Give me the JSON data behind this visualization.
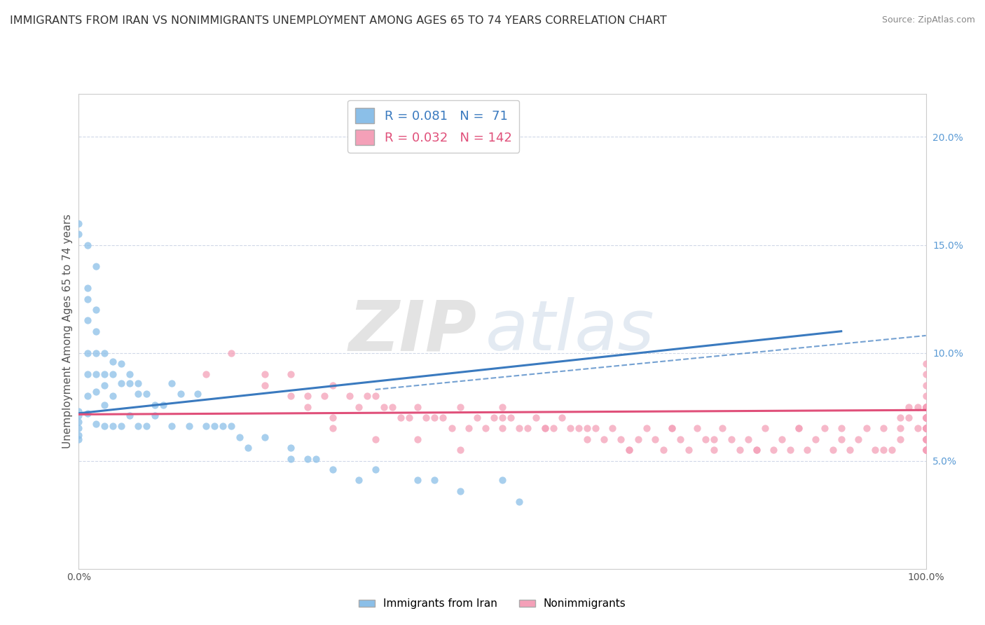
{
  "title": "IMMIGRANTS FROM IRAN VS NONIMMIGRANTS UNEMPLOYMENT AMONG AGES 65 TO 74 YEARS CORRELATION CHART",
  "source": "Source: ZipAtlas.com",
  "ylabel": "Unemployment Among Ages 65 to 74 years",
  "y_ticks": [
    0.05,
    0.1,
    0.15,
    0.2
  ],
  "y_tick_labels": [
    "5.0%",
    "10.0%",
    "15.0%",
    "20.0%"
  ],
  "x_range": [
    0.0,
    1.0
  ],
  "y_range": [
    0.0,
    0.22
  ],
  "series1": {
    "label": "Immigrants from Iran",
    "color": "#8bbfe8",
    "trend_color": "#3a7abf",
    "R": 0.081,
    "N": 71,
    "scatter_x": [
      0.0,
      0.0,
      0.0,
      0.0,
      0.0,
      0.0,
      0.01,
      0.01,
      0.01,
      0.01,
      0.01,
      0.01,
      0.01,
      0.02,
      0.02,
      0.02,
      0.02,
      0.02,
      0.02,
      0.03,
      0.03,
      0.03,
      0.03,
      0.03,
      0.04,
      0.04,
      0.04,
      0.04,
      0.05,
      0.05,
      0.05,
      0.06,
      0.06,
      0.06,
      0.07,
      0.07,
      0.07,
      0.08,
      0.08,
      0.09,
      0.09,
      0.1,
      0.11,
      0.11,
      0.12,
      0.13,
      0.14,
      0.15,
      0.16,
      0.17,
      0.18,
      0.19,
      0.2,
      0.22,
      0.25,
      0.25,
      0.27,
      0.28,
      0.3,
      0.33,
      0.35,
      0.4,
      0.42,
      0.45,
      0.5,
      0.52,
      0.0,
      0.0,
      0.01,
      0.02
    ],
    "scatter_y": [
      0.073,
      0.065,
      0.062,
      0.068,
      0.071,
      0.06,
      0.13,
      0.125,
      0.115,
      0.1,
      0.09,
      0.08,
      0.072,
      0.12,
      0.11,
      0.1,
      0.09,
      0.082,
      0.067,
      0.1,
      0.09,
      0.085,
      0.076,
      0.066,
      0.096,
      0.09,
      0.08,
      0.066,
      0.095,
      0.086,
      0.066,
      0.09,
      0.086,
      0.071,
      0.086,
      0.081,
      0.066,
      0.081,
      0.066,
      0.076,
      0.071,
      0.076,
      0.086,
      0.066,
      0.081,
      0.066,
      0.081,
      0.066,
      0.066,
      0.066,
      0.066,
      0.061,
      0.056,
      0.061,
      0.056,
      0.051,
      0.051,
      0.051,
      0.046,
      0.041,
      0.046,
      0.041,
      0.041,
      0.036,
      0.041,
      0.031,
      0.16,
      0.155,
      0.15,
      0.14
    ],
    "trend_x": [
      0.0,
      0.9
    ],
    "trend_y": [
      0.072,
      0.11
    ]
  },
  "series2": {
    "label": "Nonimmigrants",
    "color": "#f4a0b8",
    "trend_color": "#e0507a",
    "R": 0.032,
    "N": 142,
    "scatter_x": [
      0.15,
      0.18,
      0.22,
      0.22,
      0.25,
      0.25,
      0.27,
      0.27,
      0.29,
      0.3,
      0.3,
      0.32,
      0.33,
      0.34,
      0.35,
      0.36,
      0.37,
      0.38,
      0.39,
      0.4,
      0.41,
      0.42,
      0.43,
      0.44,
      0.45,
      0.46,
      0.47,
      0.48,
      0.49,
      0.5,
      0.5,
      0.51,
      0.52,
      0.53,
      0.54,
      0.55,
      0.56,
      0.57,
      0.58,
      0.59,
      0.6,
      0.61,
      0.62,
      0.63,
      0.64,
      0.65,
      0.66,
      0.67,
      0.68,
      0.69,
      0.7,
      0.71,
      0.72,
      0.73,
      0.74,
      0.75,
      0.76,
      0.77,
      0.78,
      0.79,
      0.8,
      0.81,
      0.82,
      0.83,
      0.84,
      0.85,
      0.86,
      0.87,
      0.88,
      0.89,
      0.9,
      0.91,
      0.92,
      0.93,
      0.94,
      0.95,
      0.96,
      0.97,
      0.97,
      0.98,
      0.98,
      0.99,
      0.99,
      1.0,
      1.0,
      1.0,
      1.0,
      1.0,
      1.0,
      1.0,
      1.0,
      1.0,
      1.0,
      1.0,
      1.0,
      1.0,
      1.0,
      1.0,
      1.0,
      1.0,
      1.0,
      0.3,
      0.35,
      0.4,
      0.45,
      0.5,
      0.55,
      0.6,
      0.65,
      0.7,
      0.75,
      0.8,
      0.85,
      0.9,
      0.95,
      1.0,
      1.0,
      1.0,
      1.0,
      1.0,
      1.0,
      1.0,
      1.0,
      1.0,
      1.0,
      1.0,
      1.0,
      1.0,
      1.0,
      1.0,
      1.0,
      1.0,
      1.0,
      1.0,
      1.0,
      1.0,
      1.0,
      1.0,
      1.0,
      1.0,
      1.0,
      1.0,
      0.97
    ],
    "scatter_y": [
      0.09,
      0.1,
      0.085,
      0.09,
      0.09,
      0.08,
      0.08,
      0.075,
      0.08,
      0.085,
      0.07,
      0.08,
      0.075,
      0.08,
      0.08,
      0.075,
      0.075,
      0.07,
      0.07,
      0.075,
      0.07,
      0.07,
      0.07,
      0.065,
      0.075,
      0.065,
      0.07,
      0.065,
      0.07,
      0.075,
      0.065,
      0.07,
      0.065,
      0.065,
      0.07,
      0.065,
      0.065,
      0.07,
      0.065,
      0.065,
      0.065,
      0.065,
      0.06,
      0.065,
      0.06,
      0.055,
      0.06,
      0.065,
      0.06,
      0.055,
      0.065,
      0.06,
      0.055,
      0.065,
      0.06,
      0.055,
      0.065,
      0.06,
      0.055,
      0.06,
      0.055,
      0.065,
      0.055,
      0.06,
      0.055,
      0.065,
      0.055,
      0.06,
      0.065,
      0.055,
      0.065,
      0.055,
      0.06,
      0.065,
      0.055,
      0.065,
      0.055,
      0.07,
      0.065,
      0.075,
      0.07,
      0.065,
      0.075,
      0.075,
      0.07,
      0.065,
      0.06,
      0.055,
      0.075,
      0.065,
      0.06,
      0.055,
      0.07,
      0.065,
      0.06,
      0.055,
      0.065,
      0.075,
      0.07,
      0.065,
      0.07,
      0.065,
      0.06,
      0.06,
      0.055,
      0.07,
      0.065,
      0.06,
      0.055,
      0.065,
      0.06,
      0.055,
      0.065,
      0.06,
      0.055,
      0.09,
      0.08,
      0.085,
      0.065,
      0.075,
      0.065,
      0.06,
      0.055,
      0.065,
      0.07,
      0.065,
      0.06,
      0.055,
      0.07,
      0.075,
      0.065,
      0.07,
      0.065,
      0.06,
      0.055,
      0.075,
      0.07,
      0.065,
      0.075,
      0.07,
      0.065,
      0.095,
      0.06
    ],
    "trend_x": [
      0.0,
      1.0
    ],
    "trend_y": [
      0.0715,
      0.0735
    ]
  },
  "watermark_line1": "ZIP",
  "watermark_line2": "atlas",
  "background_color": "#ffffff",
  "plot_bg_color": "#ffffff",
  "grid_color": "#d0d8e8",
  "title_fontsize": 11.5,
  "axis_label_fontsize": 11,
  "tick_fontsize": 10,
  "legend_fontsize": 13
}
